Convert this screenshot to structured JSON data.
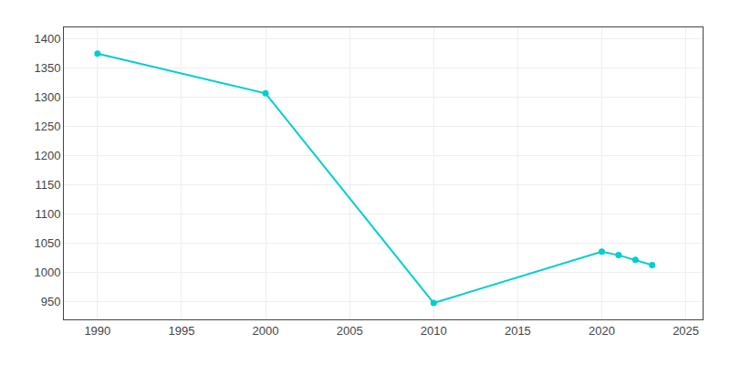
{
  "chart_data": {
    "type": "line",
    "x": [
      1990,
      2000,
      2010,
      2020,
      2021,
      2022,
      2023
    ],
    "values": [
      1375,
      1307,
      948,
      1036,
      1030,
      1022,
      1013
    ],
    "color": "#00CED1",
    "marker": "circle",
    "xlim": [
      1988,
      2026
    ],
    "ylim": [
      920,
      1420
    ],
    "xticks": [
      1990,
      1995,
      2000,
      2005,
      2010,
      2015,
      2020,
      2025
    ],
    "yticks": [
      950,
      1000,
      1050,
      1100,
      1150,
      1200,
      1250,
      1300,
      1350,
      1400
    ],
    "grid": true
  }
}
